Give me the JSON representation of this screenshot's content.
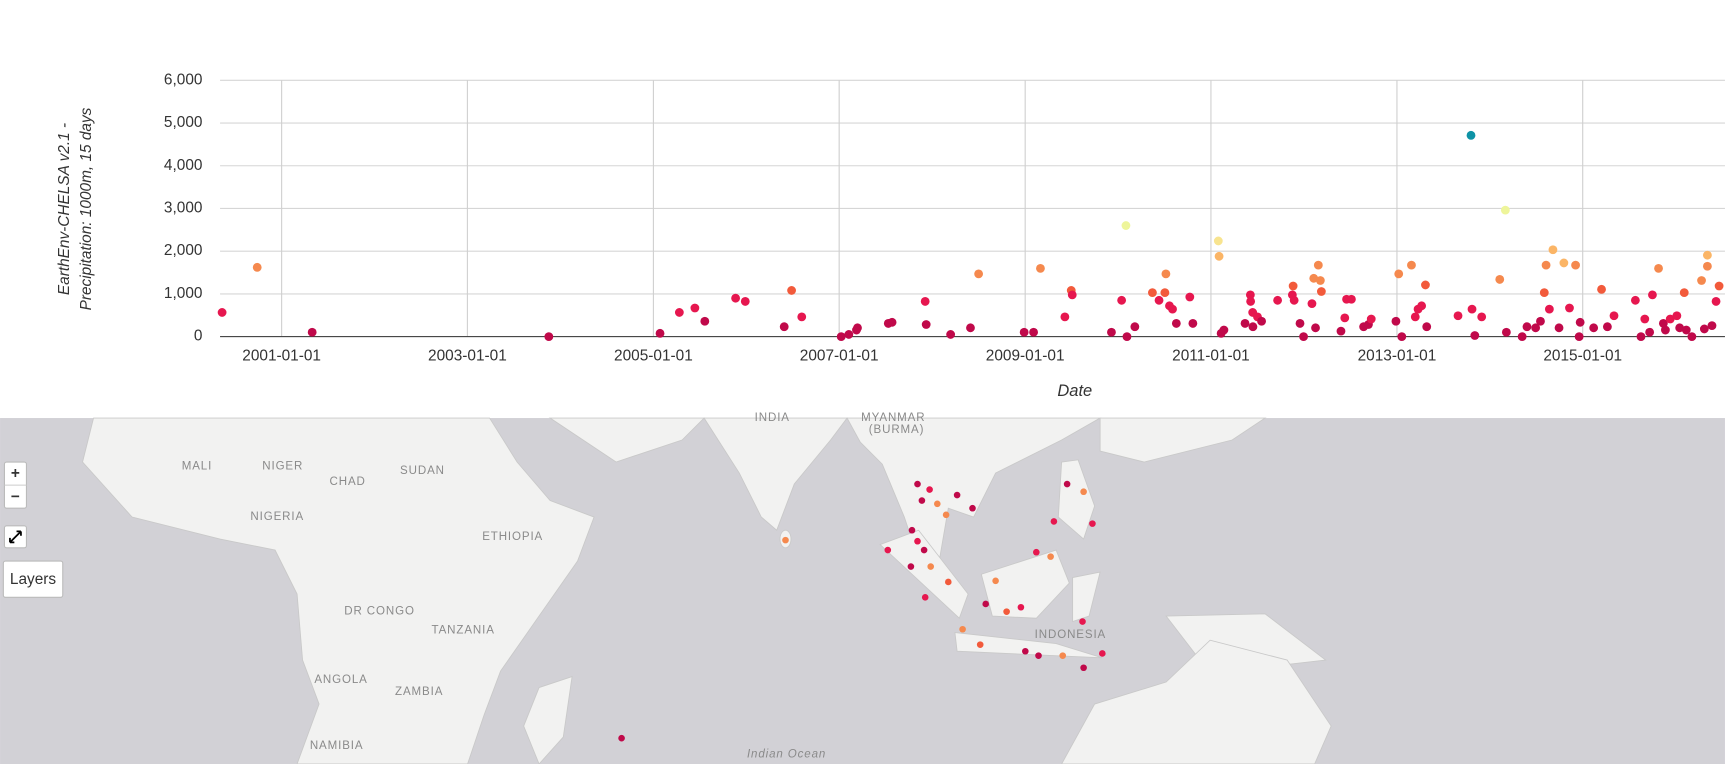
{
  "chart_data": {
    "type": "scatter",
    "ylabel": [
      "EarthEnv-CHELSA v2.1 -",
      "Precipitation: 1000m, 15 days"
    ],
    "xlabel": "Date",
    "xlim": [
      "2000-05-04",
      "2016-07-13"
    ],
    "xticks": [
      "2001-01-01",
      "2003-01-01",
      "2005-01-01",
      "2007-01-01",
      "2009-01-01",
      "2011-01-01",
      "2013-01-01",
      "2015-01-01"
    ],
    "ylim": [
      0,
      6000
    ],
    "yticks": [
      0,
      {
        "value": 1000,
        "label": "1,000"
      },
      {
        "value": 2000,
        "label": "2,000"
      },
      {
        "value": 3000,
        "label": "3,000"
      },
      {
        "value": 4000,
        "label": "4,000"
      },
      {
        "value": 5000,
        "label": "5,000"
      },
      {
        "value": 6000,
        "label": "6,000"
      }
    ],
    "grid": true,
    "x": [
      "2000-05-12",
      "2000-09-27",
      "2001-05-01",
      "2003-11-17",
      "2005-01-27",
      "2005-04-13",
      "2005-06-13",
      "2005-07-22",
      "2005-11-20",
      "2005-12-28",
      "2006-05-30",
      "2006-06-28",
      "2006-08-07",
      "2007-01-09",
      "2007-02-08",
      "2007-03-10",
      "2007-03-14",
      "2007-07-13",
      "2007-07-28",
      "2007-12-05",
      "2007-12-09",
      "2008-03-14",
      "2008-05-31",
      "2008-07-02",
      "2008-12-28",
      "2009-02-03",
      "2009-03-02",
      "2009-06-06",
      "2009-07-01",
      "2009-07-05",
      "2009-12-06",
      "2010-01-15",
      "2010-02-01",
      "2010-02-05",
      "2010-03-08",
      "2010-05-16",
      "2010-06-11",
      "2010-07-04",
      "2010-07-08",
      "2010-07-22",
      "2010-08-03",
      "2010-08-18",
      "2010-10-10",
      "2010-10-22",
      "2011-01-30",
      "2011-02-02",
      "2011-02-10",
      "2011-02-21",
      "2011-05-15",
      "2011-06-05",
      "2011-06-06",
      "2011-06-14",
      "2011-06-15",
      "2011-07-03",
      "2011-07-19",
      "2011-09-20",
      "2011-11-17",
      "2011-11-20",
      "2011-11-24",
      "2011-12-17",
      "2011-12-31",
      "2012-02-02",
      "2012-02-09",
      "2012-02-16",
      "2012-02-27",
      "2012-03-06",
      "2012-03-10",
      "2012-05-26",
      "2012-06-10",
      "2012-06-17",
      "2012-07-06",
      "2012-08-23",
      "2012-09-11",
      "2012-09-22",
      "2012-12-28",
      "2013-01-08",
      "2013-01-20",
      "2013-02-27",
      "2013-03-14",
      "2013-03-25",
      "2013-04-08",
      "2013-04-23",
      "2013-04-28",
      "2013-08-29",
      "2013-10-19",
      "2013-10-23",
      "2013-11-03",
      "2013-11-30",
      "2014-02-09",
      "2014-03-03",
      "2014-03-07",
      "2014-05-08",
      "2014-05-27",
      "2014-06-30",
      "2014-07-19",
      "2014-08-03",
      "2014-08-10",
      "2014-08-23",
      "2014-09-06",
      "2014-09-30",
      "2014-10-19",
      "2014-11-10",
      "2014-12-04",
      "2014-12-18",
      "2014-12-22",
      "2015-02-13",
      "2015-03-16",
      "2015-04-08",
      "2015-05-04",
      "2015-07-27",
      "2015-08-18",
      "2015-09-02",
      "2015-09-21",
      "2015-10-02",
      "2015-10-26",
      "2015-11-14",
      "2015-11-22",
      "2015-12-11",
      "2016-01-06",
      "2016-01-17",
      "2016-02-04",
      "2016-02-12",
      "2016-03-05",
      "2016-04-12",
      "2016-04-23",
      "2016-05-05",
      "2016-05-05",
      "2016-05-23",
      "2016-06-08",
      "2016-06-20"
    ],
    "values": [
      566,
      1622,
      103,
      0,
      77,
      566,
      670,
      360,
      900,
      824,
      232,
      1081,
      463,
      0,
      51,
      154,
      206,
      309,
      335,
      824,
      283,
      51,
      206,
      1468,
      103,
      103,
      1597,
      463,
      1081,
      978,
      103,
      850,
      2600,
      0,
      232,
      1030,
      850,
      1030,
      1468,
      721,
      644,
      309,
      927,
      309,
      2240,
      1880,
      77,
      154,
      309,
      978,
      824,
      566,
      232,
      463,
      360,
      850,
      978,
      1185,
      850,
      309,
      0,
      772,
      1365,
      206,
      1674,
      1313,
      1056,
      129,
      438,
      875,
      875,
      232,
      283,
      412,
      360,
      1468,
      0,
      1674,
      463,
      644,
      721,
      1210,
      232,
      489,
      4712,
      644,
      26,
      463,
      1339,
      2961,
      103,
      0,
      232,
      206,
      360,
      1030,
      1674,
      644,
      2034,
      206,
      1725,
      670,
      1674,
      0,
      335,
      206,
      1107,
      232,
      489,
      850,
      0,
      412,
      103,
      978,
      1597,
      309,
      154,
      412,
      489,
      206,
      1030,
      154,
      0,
      1313,
      180,
      1906,
      1648,
      257,
      824,
      1185
    ],
    "colors": [
      "#e6174f",
      "#f5894e",
      "#c0094a",
      "#c0094a",
      "#c0094a",
      "#e6174f",
      "#e6174f",
      "#c0094a",
      "#e6174f",
      "#e6174f",
      "#c0094a",
      "#f25a3b",
      "#e6174f",
      "#c0094a",
      "#c0094a",
      "#c0094a",
      "#c0094a",
      "#c0094a",
      "#c0094a",
      "#e6174f",
      "#c0094a",
      "#c0094a",
      "#c0094a",
      "#f5894e",
      "#c0094a",
      "#c0094a",
      "#f5894e",
      "#e6174f",
      "#f25a3b",
      "#e6174f",
      "#c0094a",
      "#e6174f",
      "#eef59a",
      "#c0094a",
      "#c0094a",
      "#f25a3b",
      "#e6174f",
      "#f25a3b",
      "#f5894e",
      "#e6174f",
      "#e6174f",
      "#c0094a",
      "#e6174f",
      "#c0094a",
      "#f8e48f",
      "#fbb566",
      "#c0094a",
      "#c0094a",
      "#c0094a",
      "#e6174f",
      "#e6174f",
      "#e6174f",
      "#c0094a",
      "#e6174f",
      "#c0094a",
      "#e6174f",
      "#e6174f",
      "#f25a3b",
      "#e6174f",
      "#c0094a",
      "#c0094a",
      "#e6174f",
      "#f5894e",
      "#c0094a",
      "#f5894e",
      "#f5894e",
      "#f25a3b",
      "#c0094a",
      "#e6174f",
      "#e6174f",
      "#e6174f",
      "#c0094a",
      "#c0094a",
      "#e6174f",
      "#c0094a",
      "#f5894e",
      "#c0094a",
      "#f5894e",
      "#e6174f",
      "#e6174f",
      "#e6174f",
      "#f25a3b",
      "#c0094a",
      "#e6174f",
      "#0e93a6",
      "#e6174f",
      "#c0094a",
      "#e6174f",
      "#f5894e",
      "#eef59a",
      "#c0094a",
      "#c0094a",
      "#c0094a",
      "#c0094a",
      "#c0094a",
      "#f25a3b",
      "#f5894e",
      "#e6174f",
      "#fbb566",
      "#c0094a",
      "#fbb566",
      "#e6174f",
      "#f5894e",
      "#c0094a",
      "#c0094a",
      "#c0094a",
      "#f25a3b",
      "#c0094a",
      "#e6174f",
      "#e6174f",
      "#c0094a",
      "#e6174f",
      "#c0094a",
      "#e6174f",
      "#f5894e",
      "#c0094a",
      "#c0094a",
      "#e6174f",
      "#e6174f",
      "#c0094a",
      "#f25a3b",
      "#c0094a",
      "#c0094a",
      "#f5894e",
      "#c0094a",
      "#fbb566",
      "#f5894e",
      "#c0094a",
      "#e6174f",
      "#f25a3b"
    ]
  },
  "map": {
    "labels": [
      "MALI",
      "NIGER",
      "CHAD",
      "SUDAN",
      "NIGERIA",
      "ETHIOPIA",
      "DR CONGO",
      "TANZANIA",
      "ANGOLA",
      "ZAMBIA",
      "NAMIBIA",
      "INDIA",
      "MYANMAR",
      "(BURMA)",
      "INDONESIA",
      "Indian Ocean"
    ],
    "controls": {
      "zoom_in": "+",
      "zoom_out": "−",
      "layers": "Layers"
    }
  }
}
